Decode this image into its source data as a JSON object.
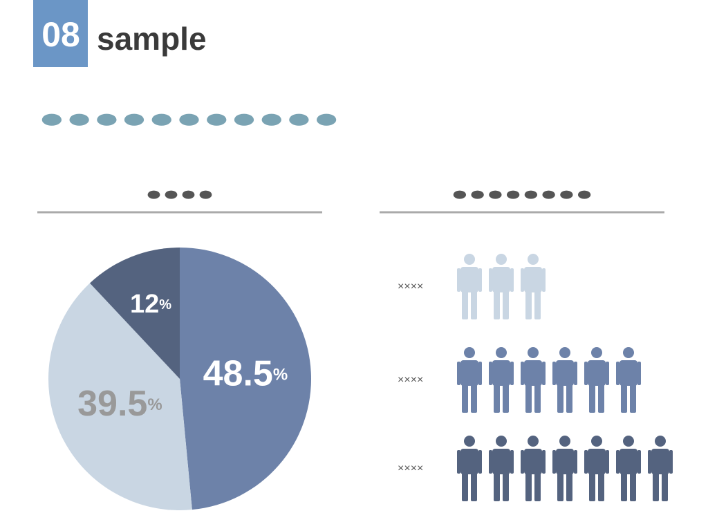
{
  "header": {
    "number": "08",
    "title": "sample",
    "subtitle": "●●●●●●●●●●●"
  },
  "chart_data": [
    {
      "type": "pie",
      "title": "●●●●",
      "values": [
        48.5,
        39.5,
        12
      ],
      "value_labels": [
        "48.5%",
        "39.5%",
        "12%"
      ],
      "colors": [
        "#6d82a9",
        "#c9d6e3",
        "#54637f"
      ],
      "label_colors": [
        "#ffffff",
        "#999999",
        "#ffffff"
      ]
    },
    {
      "type": "pictogram",
      "title": "●●●●●●●●",
      "categories": [
        "××××",
        "××××",
        "××××"
      ],
      "values": [
        3,
        6,
        7
      ],
      "colors": [
        "#c9d6e3",
        "#6d82a9",
        "#54637f"
      ]
    }
  ]
}
